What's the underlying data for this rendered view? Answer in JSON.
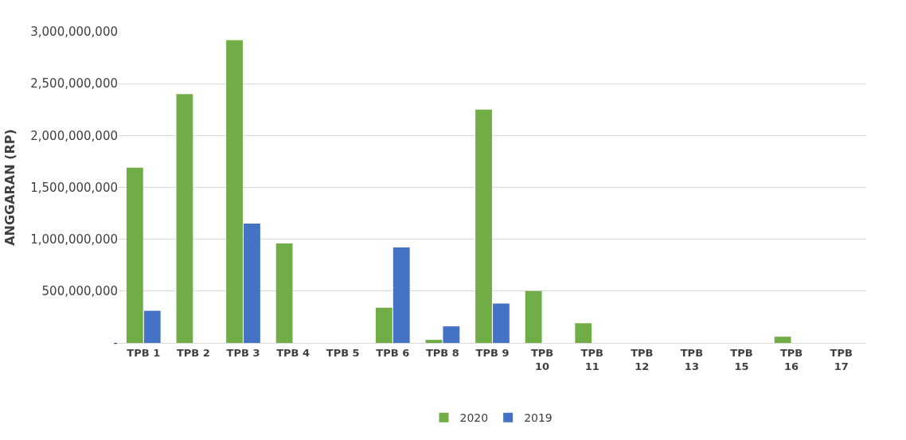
{
  "chart_data": {
    "type": "bar",
    "ylabel": "ANGGARAN (RP)",
    "categories": [
      "TPB 1",
      "TPB 2",
      "TPB 3",
      "TPB 4",
      "TPB 5",
      "TPB 6",
      "TPB 8",
      "TPB 9",
      "TPB 10",
      "TPB 11",
      "TPB 12",
      "TPB 13",
      "TPB 15",
      "TPB 16",
      "TPB 17"
    ],
    "series": [
      {
        "name": "2020",
        "color": "#70ad47",
        "values": [
          1690000000,
          2400000000,
          2920000000,
          960000000,
          0,
          340000000,
          30000000,
          2250000000,
          500000000,
          190000000,
          0,
          0,
          0,
          60000000,
          0
        ]
      },
      {
        "name": "2019",
        "color": "#4472c4",
        "values": [
          310000000,
          0,
          1150000000,
          0,
          0,
          920000000,
          160000000,
          380000000,
          0,
          0,
          0,
          0,
          0,
          0,
          0
        ]
      }
    ],
    "ylim": [
      0,
      3000000000
    ],
    "yticks": [
      {
        "value": 0,
        "label": "-"
      },
      {
        "value": 500000000,
        "label": "500,000,000"
      },
      {
        "value": 1000000000,
        "label": "1,000,000,000"
      },
      {
        "value": 1500000000,
        "label": "1,500,000,000"
      },
      {
        "value": 2000000000,
        "label": "2,000,000,000"
      },
      {
        "value": 2500000000,
        "label": "2,500,000,000"
      },
      {
        "value": 3000000000,
        "label": "3,000,000,000"
      }
    ],
    "grid": "y",
    "legend": "bottom"
  }
}
